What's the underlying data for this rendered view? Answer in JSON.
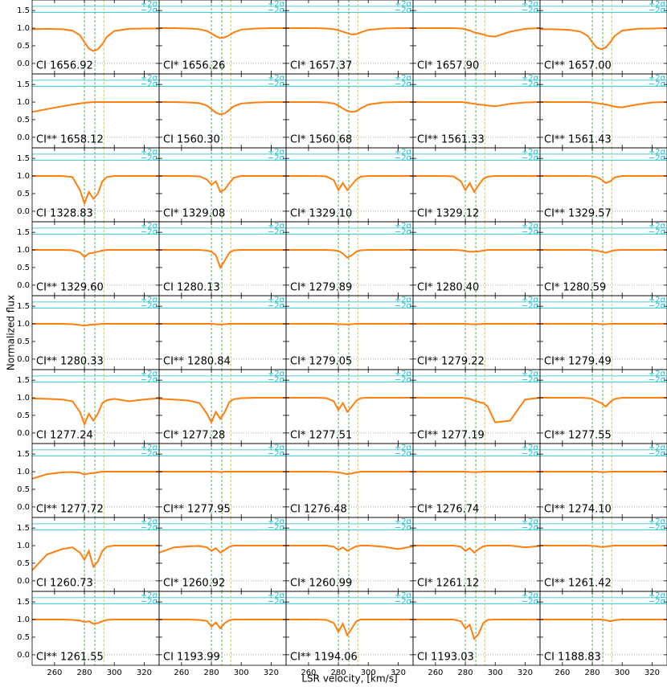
{
  "chart_data": {
    "type": "line",
    "ylabel": "Normalized flux",
    "xlabel": "LSR velocity, [km/s]",
    "xlim": [
      245,
      330
    ],
    "xticks": [
      260,
      280,
      300,
      320
    ],
    "ylim": [
      -0.3,
      1.8
    ],
    "yticks": [
      {
        "value": 0,
        "label": "0.0"
      },
      {
        "value": 0.5,
        "label": "0.5"
      },
      {
        "value": 1,
        "label": "1.0"
      },
      {
        "value": 1.5,
        "label": "1.5"
      }
    ],
    "color": "#ff7f0e",
    "components": [
      280,
      287,
      293
    ],
    "component_colors": [
      "#2ca02c",
      "#2ca02c",
      "#bcbd22"
    ],
    "sigma_levels": [
      1.62,
      1.45
    ],
    "sigma_labels": [
      "+2σ",
      "−2σ"
    ],
    "sigma_color": "#17becf",
    "x": [
      245,
      255,
      265,
      272,
      277,
      280,
      283,
      286,
      289,
      292,
      295,
      300,
      310,
      320,
      330
    ],
    "panels": [
      {
        "label": "CI 1656.92",
        "values": [
          0.97,
          0.98,
          0.97,
          0.93,
          0.8,
          0.6,
          0.42,
          0.35,
          0.4,
          0.55,
          0.75,
          0.92,
          0.98,
          0.99,
          0.99
        ]
      },
      {
        "label": "CI* 1656.26",
        "values": [
          1,
          1,
          0.99,
          0.97,
          0.92,
          0.85,
          0.77,
          0.72,
          0.74,
          0.8,
          0.88,
          0.96,
          0.99,
          1,
          1
        ]
      },
      {
        "label": "CI* 1657.37",
        "values": [
          1,
          1,
          1,
          0.99,
          0.97,
          0.94,
          0.9,
          0.86,
          0.82,
          0.83,
          0.88,
          0.95,
          0.99,
          1,
          1
        ]
      },
      {
        "label": "CI* 1657.90",
        "values": [
          1,
          1,
          1,
          1,
          0.99,
          0.97,
          0.93,
          0.88,
          0.85,
          0.82,
          0.78,
          0.76,
          0.9,
          0.98,
          1
        ]
      },
      {
        "label": "CI** 1657.00",
        "values": [
          0.97,
          0.97,
          0.95,
          0.9,
          0.78,
          0.6,
          0.45,
          0.4,
          0.45,
          0.6,
          0.78,
          0.93,
          0.98,
          0.99,
          1
        ]
      },
      {
        "label": "CI** 1658.12",
        "values": [
          0.72,
          0.8,
          0.88,
          0.93,
          0.96,
          0.98,
          0.99,
          1,
          1,
          1,
          1,
          1,
          1,
          1,
          1
        ]
      },
      {
        "label": "CI 1560.30",
        "values": [
          1,
          1,
          0.99,
          0.97,
          0.9,
          0.8,
          0.7,
          0.65,
          0.68,
          0.78,
          0.88,
          0.96,
          0.99,
          1,
          1
        ]
      },
      {
        "label": "CI* 1560.68",
        "values": [
          1,
          1,
          1,
          0.99,
          0.96,
          0.9,
          0.82,
          0.75,
          0.72,
          0.74,
          0.82,
          0.93,
          0.99,
          1,
          1
        ]
      },
      {
        "label": "CI** 1561.33",
        "values": [
          1,
          1,
          1,
          1,
          1,
          0.99,
          0.97,
          0.95,
          0.93,
          0.92,
          0.9,
          0.88,
          0.95,
          0.99,
          1
        ]
      },
      {
        "label": "CI** 1561.43",
        "values": [
          1,
          1,
          1,
          1,
          1,
          0.99,
          0.97,
          0.95,
          0.93,
          0.9,
          0.87,
          0.85,
          0.93,
          0.99,
          1
        ]
      },
      {
        "label": "CI 1328.83",
        "values": [
          1,
          1,
          1,
          0.97,
          0.6,
          0.22,
          0.55,
          0.35,
          0.5,
          0.85,
          0.97,
          1,
          1,
          1,
          1
        ]
      },
      {
        "label": "CI* 1329.08",
        "values": [
          1,
          1,
          1,
          0.99,
          0.9,
          0.75,
          0.85,
          0.55,
          0.62,
          0.8,
          0.95,
          1,
          1,
          1,
          1
        ]
      },
      {
        "label": "CI* 1329.10",
        "values": [
          1,
          1,
          1,
          0.99,
          0.88,
          0.6,
          0.8,
          0.6,
          0.75,
          0.9,
          0.98,
          1,
          1,
          1,
          1
        ]
      },
      {
        "label": "CI* 1329.12",
        "values": [
          1,
          1,
          1,
          0.99,
          0.85,
          0.6,
          0.8,
          0.55,
          0.75,
          0.92,
          0.98,
          1,
          1,
          1,
          1
        ]
      },
      {
        "label": "CI** 1329.57",
        "values": [
          1,
          1,
          1,
          1,
          1,
          0.99,
          0.97,
          0.9,
          0.8,
          0.85,
          0.96,
          1,
          1,
          1,
          1
        ]
      },
      {
        "label": "CI** 1329.60",
        "values": [
          1,
          1,
          1,
          0.99,
          0.93,
          0.8,
          0.9,
          0.92,
          0.95,
          0.98,
          1,
          1,
          1,
          1,
          1
        ]
      },
      {
        "label": "CI 1280.13",
        "values": [
          1,
          1,
          1,
          1,
          0.98,
          0.95,
          0.85,
          0.5,
          0.7,
          0.92,
          0.99,
          1,
          1,
          1,
          1
        ]
      },
      {
        "label": "CI* 1279.89",
        "values": [
          1,
          1,
          1,
          1,
          0.99,
          0.97,
          0.9,
          0.78,
          0.85,
          0.95,
          0.99,
          1,
          1,
          1,
          1
        ]
      },
      {
        "label": "CI* 1280.40",
        "values": [
          1,
          1,
          1,
          1,
          0.99,
          0.97,
          0.95,
          0.95,
          0.96,
          0.98,
          1,
          1,
          1,
          1,
          1
        ]
      },
      {
        "label": "CI* 1280.59",
        "values": [
          1,
          1,
          1,
          1,
          1,
          0.99,
          0.98,
          0.95,
          0.92,
          0.96,
          0.99,
          1,
          1,
          1,
          1
        ]
      },
      {
        "label": "CI** 1280.33",
        "values": [
          1,
          1,
          1,
          0.99,
          0.97,
          0.95,
          0.97,
          0.98,
          0.99,
          1,
          1,
          1,
          1,
          1,
          1
        ]
      },
      {
        "label": "CI** 1280.84",
        "values": [
          1,
          1,
          1,
          1,
          1,
          1,
          0.99,
          0.98,
          0.99,
          1,
          1,
          1,
          1,
          1,
          1
        ]
      },
      {
        "label": "CI* 1279.05",
        "values": [
          1,
          1,
          1,
          1,
          1,
          0.99,
          0.99,
          0.98,
          0.99,
          1,
          1,
          1,
          1,
          1,
          1
        ]
      },
      {
        "label": "CI** 1279.22",
        "values": [
          1,
          1,
          1,
          1,
          1,
          1,
          0.99,
          0.99,
          0.99,
          1,
          1,
          1,
          1,
          1,
          1
        ]
      },
      {
        "label": "CI** 1279.49",
        "values": [
          1,
          1,
          1,
          1,
          1,
          1,
          1,
          0.99,
          0.99,
          1,
          1,
          1,
          1,
          1,
          1
        ]
      },
      {
        "label": "CI 1277.24",
        "values": [
          0.98,
          0.97,
          0.95,
          0.9,
          0.6,
          0.25,
          0.55,
          0.35,
          0.55,
          0.85,
          0.93,
          0.97,
          0.9,
          0.95,
          0.99
        ]
      },
      {
        "label": "CI* 1277.28",
        "values": [
          0.97,
          0.95,
          0.92,
          0.85,
          0.55,
          0.3,
          0.6,
          0.4,
          0.6,
          0.88,
          0.96,
          0.99,
          1,
          1,
          1
        ]
      },
      {
        "label": "CI* 1277.51",
        "values": [
          1,
          1,
          1,
          0.99,
          0.9,
          0.65,
          0.85,
          0.6,
          0.75,
          0.92,
          0.99,
          1,
          1,
          1,
          1
        ]
      },
      {
        "label": "CI** 1277.19",
        "values": [
          1,
          1,
          1,
          1,
          1,
          0.99,
          0.97,
          0.92,
          0.88,
          0.85,
          0.75,
          0.3,
          0.35,
          0.95,
          1
        ]
      },
      {
        "label": "CI** 1277.55",
        "values": [
          1,
          1,
          1,
          1,
          0.99,
          0.97,
          0.9,
          0.85,
          0.75,
          0.88,
          0.97,
          1,
          1,
          1,
          1
        ]
      },
      {
        "label": "CI** 1277.72",
        "values": [
          0.8,
          0.93,
          0.98,
          0.99,
          0.97,
          0.92,
          0.95,
          0.96,
          0.98,
          1,
          1,
          1,
          1,
          1,
          1
        ]
      },
      {
        "label": "CI** 1277.95",
        "values": [
          1,
          1,
          1,
          1,
          1,
          1,
          1,
          0.99,
          1,
          1,
          1,
          1,
          1,
          1,
          1
        ]
      },
      {
        "label": "CI 1276.48",
        "values": [
          1,
          1,
          1,
          1,
          0.99,
          0.98,
          0.96,
          0.93,
          0.95,
          0.98,
          1,
          1,
          1,
          1,
          1
        ]
      },
      {
        "label": "CI* 1276.74",
        "values": [
          1,
          1,
          1,
          1,
          1,
          1,
          0.99,
          0.99,
          0.99,
          1,
          1,
          1,
          1,
          1,
          1
        ]
      },
      {
        "label": "CI** 1274.10",
        "values": [
          1,
          1,
          1,
          1,
          1,
          1,
          1,
          0.99,
          0.99,
          1,
          1,
          1,
          1,
          1,
          1
        ]
      },
      {
        "label": "CI 1260.73",
        "values": [
          0.3,
          0.75,
          0.9,
          0.95,
          0.8,
          0.6,
          0.85,
          0.4,
          0.55,
          0.85,
          0.97,
          1,
          1,
          1,
          1
        ]
      },
      {
        "label": "CI* 1260.92",
        "values": [
          0.8,
          0.95,
          0.98,
          0.99,
          0.95,
          0.85,
          0.93,
          0.8,
          0.88,
          0.97,
          1,
          1,
          1,
          1,
          1
        ]
      },
      {
        "label": "CI* 1260.99",
        "values": [
          1,
          1,
          1,
          1,
          0.97,
          0.88,
          0.95,
          0.85,
          0.92,
          0.98,
          1,
          1,
          0.97,
          0.9,
          0.98
        ]
      },
      {
        "label": "CI* 1261.12",
        "values": [
          1,
          1,
          1,
          1,
          0.97,
          0.85,
          0.93,
          0.8,
          0.9,
          0.98,
          1,
          1,
          1,
          0.95,
          0.99
        ]
      },
      {
        "label": "CI** 1261.42",
        "values": [
          1,
          1,
          1,
          1,
          1,
          0.99,
          0.98,
          0.96,
          0.97,
          0.99,
          1,
          1,
          1,
          1,
          1
        ]
      },
      {
        "label": "CI** 1261.55",
        "values": [
          1,
          1,
          1,
          0.99,
          0.97,
          0.93,
          0.95,
          0.88,
          0.9,
          0.95,
          0.99,
          1,
          1,
          1,
          1
        ]
      },
      {
        "label": "CI 1193.99",
        "values": [
          1,
          1,
          1,
          0.99,
          0.96,
          0.8,
          0.92,
          0.75,
          0.9,
          0.98,
          1,
          1,
          1,
          1,
          1
        ]
      },
      {
        "label": "CI** 1194.06",
        "values": [
          1,
          1,
          1,
          0.99,
          0.9,
          0.65,
          0.88,
          0.55,
          0.75,
          0.95,
          1,
          1,
          1,
          1,
          1
        ]
      },
      {
        "label": "CI 1193.03",
        "values": [
          1,
          1,
          1,
          1,
          0.95,
          0.75,
          0.85,
          0.45,
          0.6,
          0.9,
          0.99,
          1,
          1,
          1,
          1
        ]
      },
      {
        "label": "CI 1188.83",
        "values": [
          1,
          1,
          1,
          1,
          1,
          1,
          1,
          1,
          0.98,
          0.95,
          0.98,
          1,
          1,
          1,
          1
        ]
      }
    ]
  }
}
